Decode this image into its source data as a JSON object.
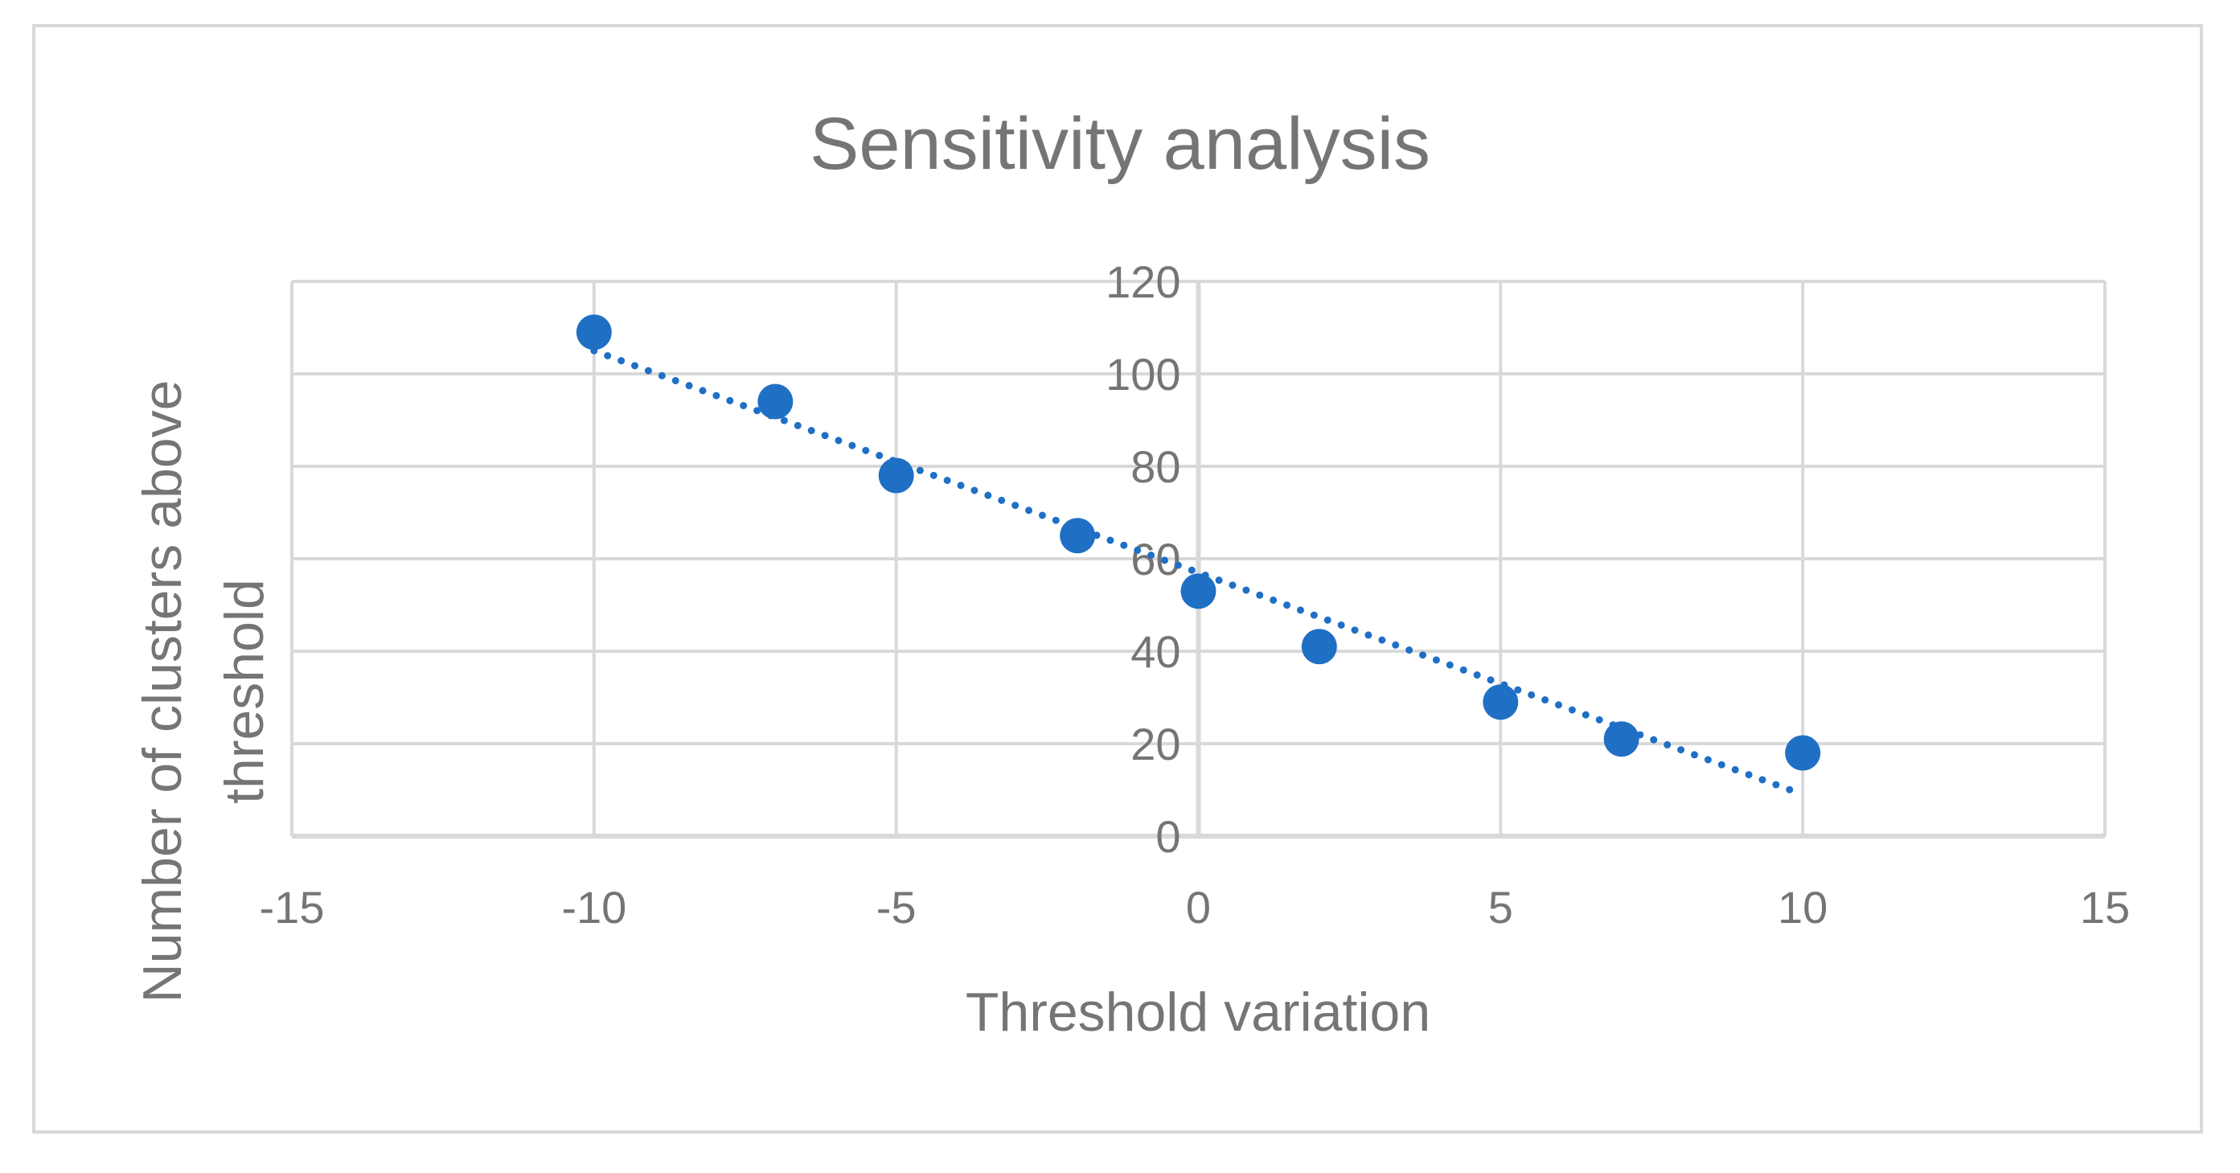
{
  "chart_data": {
    "type": "scatter",
    "title": "Sensitivity analysis",
    "xlabel": "Threshold variation",
    "ylabel": "Number of clusters above threshold",
    "ylabel_lines": [
      "Number of clusters above",
      "threshold"
    ],
    "xlim": [
      -15,
      15
    ],
    "ylim": [
      0,
      120
    ],
    "x_ticks": [
      -15,
      -10,
      -5,
      0,
      5,
      10,
      15
    ],
    "y_ticks": [
      0,
      20,
      40,
      60,
      80,
      100,
      120
    ],
    "grid": true,
    "series": [
      {
        "name": "Number of clusters above threshold",
        "x": [
          -10,
          -7,
          -5,
          -2,
          0,
          2,
          5,
          7,
          10
        ],
        "y": [
          109,
          94,
          78,
          65,
          53,
          41,
          29,
          21,
          18
        ]
      }
    ],
    "trendline": {
      "type": "linear",
      "style": "dotted",
      "x_range": [
        -10,
        10
      ],
      "y_range": [
        105,
        9
      ]
    },
    "colors": {
      "marker": "#1f6fc5",
      "trendline": "#1f6fc5",
      "grid": "#d9d9d9",
      "text": "#757575"
    }
  }
}
